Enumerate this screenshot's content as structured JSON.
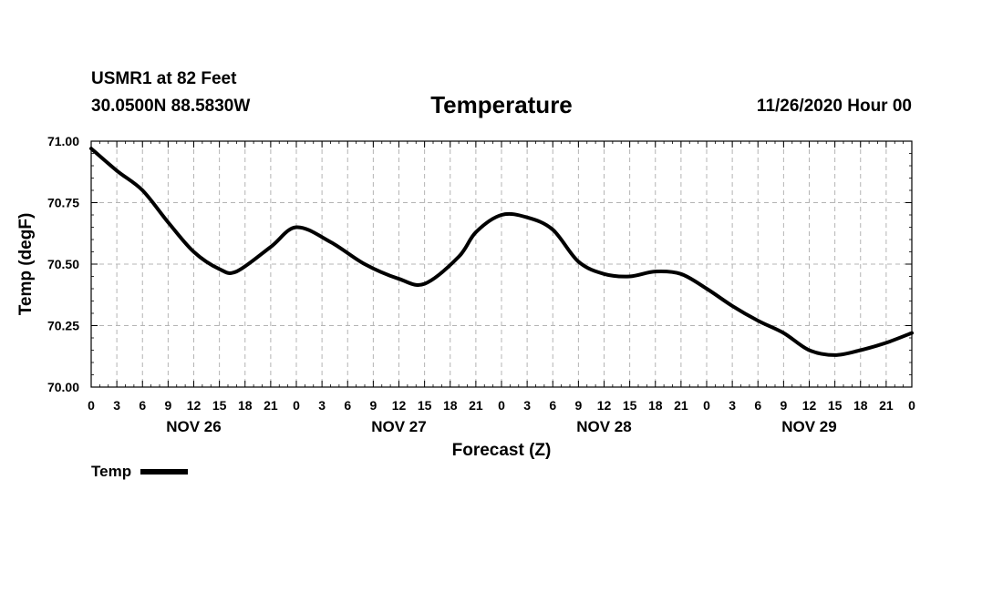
{
  "header": {
    "station": "USMR1 at 82 Feet",
    "coords": "30.0500N 88.5830W",
    "stamp": "11/26/2020 Hour 00"
  },
  "chart_data": {
    "type": "line",
    "title": "Temperature",
    "xlabel": "Forecast (Z)",
    "ylabel": "Temp (degF)",
    "ylim": [
      70.0,
      71.0
    ],
    "yticks": [
      70.0,
      70.25,
      70.5,
      70.75,
      71.0
    ],
    "ytick_labels": [
      "70.00",
      "70.25",
      "70.50",
      "70.75",
      "71.00"
    ],
    "xlim_hours": [
      0,
      96
    ],
    "xticks_hours": [
      0,
      3,
      6,
      9,
      12,
      15,
      18,
      21,
      24,
      27,
      30,
      33,
      36,
      39,
      42,
      45,
      48,
      51,
      54,
      57,
      60,
      63,
      66,
      69,
      72,
      75,
      78,
      81,
      84,
      87,
      90,
      93,
      96
    ],
    "xtick_labels": [
      "0",
      "3",
      "6",
      "9",
      "12",
      "15",
      "18",
      "21",
      "0",
      "3",
      "6",
      "9",
      "12",
      "15",
      "18",
      "21",
      "0",
      "3",
      "6",
      "9",
      "12",
      "15",
      "18",
      "21",
      "0",
      "3",
      "6",
      "9",
      "12",
      "15",
      "18",
      "21",
      "0"
    ],
    "day_labels": [
      {
        "label": "NOV 26",
        "hour": 12
      },
      {
        "label": "NOV 27",
        "hour": 36
      },
      {
        "label": "NOV 28",
        "hour": 60
      },
      {
        "label": "NOV 29",
        "hour": 84
      }
    ],
    "grid": true,
    "legend_position": "bottom-left",
    "series": [
      {
        "name": "Temp",
        "color": "#000000",
        "x": [
          0,
          3,
          6,
          9,
          12,
          15,
          17,
          21,
          24,
          28,
          32,
          36,
          39,
          43,
          45,
          48,
          51,
          54,
          57,
          60,
          63,
          66,
          69,
          72,
          75,
          78,
          81,
          84,
          87,
          90,
          93,
          96
        ],
        "values": [
          70.97,
          70.88,
          70.8,
          70.67,
          70.55,
          70.48,
          70.47,
          70.57,
          70.65,
          70.59,
          70.5,
          70.44,
          70.42,
          70.53,
          70.63,
          70.7,
          70.69,
          70.64,
          70.51,
          70.46,
          70.45,
          70.47,
          70.46,
          70.4,
          70.33,
          70.27,
          70.22,
          70.15,
          70.13,
          70.15,
          70.18,
          70.22
        ]
      }
    ]
  }
}
